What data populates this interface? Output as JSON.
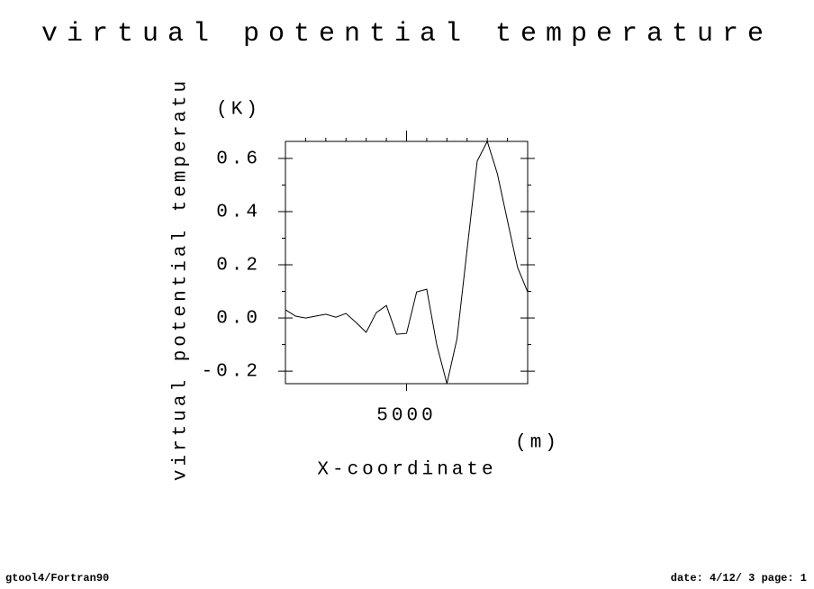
{
  "chart_data": {
    "type": "line",
    "title": "virtual potential temperature",
    "y_label": "virtual potential temperatu",
    "y_unit": "(K)",
    "x_label": "X-coordinate",
    "x_unit": "(m)",
    "x": [
      -1000,
      -500,
      0,
      500,
      1000,
      1500,
      2000,
      2500,
      3000,
      3500,
      4000,
      4500,
      5000,
      5500,
      6000,
      6500,
      7000,
      7500,
      8000,
      8500,
      9000,
      9500,
      10000,
      10500,
      11000
    ],
    "series": [
      {
        "name": "virtual potential temperature",
        "color": "#000000",
        "values": [
          0.031,
          0.007,
          0,
          0.007,
          0.014,
          0.003,
          0.017,
          -0.017,
          -0.054,
          0.02,
          0.047,
          -0.061,
          -0.058,
          0.098,
          0.108,
          -0.102,
          -0.247,
          -0.078,
          0.258,
          0.59,
          0.664,
          0.542,
          0.366,
          0.19,
          0.098
        ]
      }
    ],
    "xlim": [
      -1000,
      11000
    ],
    "ylim": [
      -0.247,
      0.664
    ],
    "xticks": [
      5000
    ],
    "x_minor_ticks": [
      0,
      1000,
      2000,
      3000,
      4000,
      6000,
      7000,
      8000,
      9000,
      10000
    ],
    "yticks": [
      0.6,
      0.4,
      0.2,
      {
        "value": 0,
        "label": "0.0"
      },
      -0.2
    ],
    "y_minor_ticks": [
      0.5,
      0.3,
      0.1,
      -0.1
    ],
    "grid": false
  },
  "footer": {
    "left": "gtool4/Fortran90",
    "right": "date: 4/12/ 3 page: 1"
  }
}
